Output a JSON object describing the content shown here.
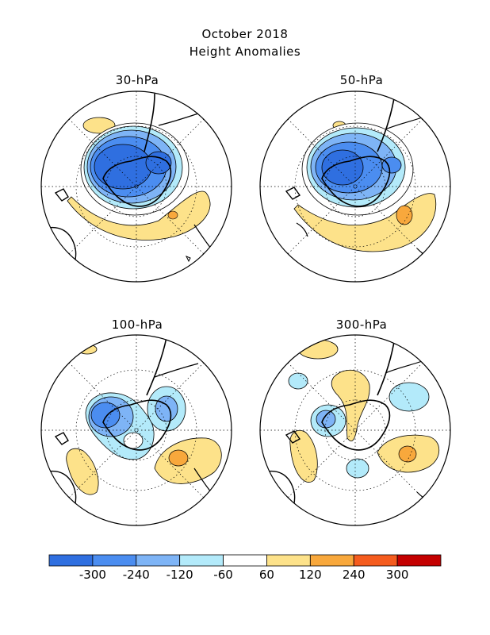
{
  "title": "October 2018",
  "subtitle": "Height Anomalies",
  "panels": [
    {
      "label": "30-hPa"
    },
    {
      "label": "50-hPa"
    },
    {
      "label": "100-hPa"
    },
    {
      "label": "300-hPa"
    }
  ],
  "colorbar": {
    "colors": [
      "#2f6fe0",
      "#4b8df0",
      "#7eb4f6",
      "#b3eafa",
      "#ffffff",
      "#fde28a",
      "#f8a83c",
      "#f55c1e",
      "#c40000"
    ],
    "tick_labels": [
      "-300",
      "-240",
      "-120",
      "-60",
      "60",
      "120",
      "240",
      "300"
    ]
  }
}
